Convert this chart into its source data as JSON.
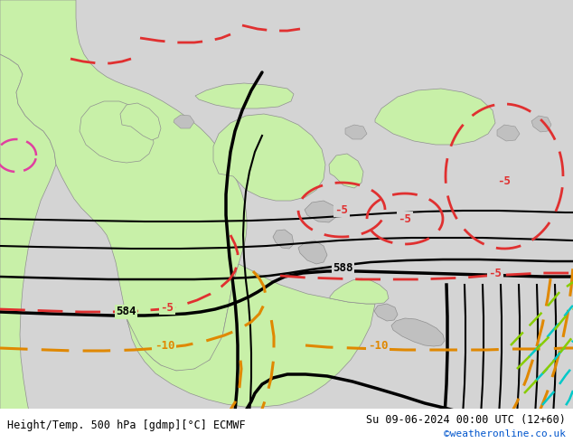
{
  "title_left": "Height/Temp. 500 hPa [gdmp][°C] ECMWF",
  "title_right": "Su 09-06-2024 00:00 UTC (12+60)",
  "watermark": "©weatheronline.co.uk",
  "bg_color": "#d4d4d4",
  "ocean_color": "#d4d4d4",
  "land_green_color": "#c8f0a8",
  "land_gray_color": "#c0c0c0",
  "border_color": "#909090",
  "contour_black_color": "#000000",
  "contour_red_color": "#e03030",
  "contour_orange_color": "#e08800",
  "contour_teal_color": "#00c8c8",
  "contour_green_color": "#88cc00",
  "contour_pink_color": "#e040a0",
  "fig_width": 6.34,
  "fig_height": 4.9,
  "dpi": 100
}
